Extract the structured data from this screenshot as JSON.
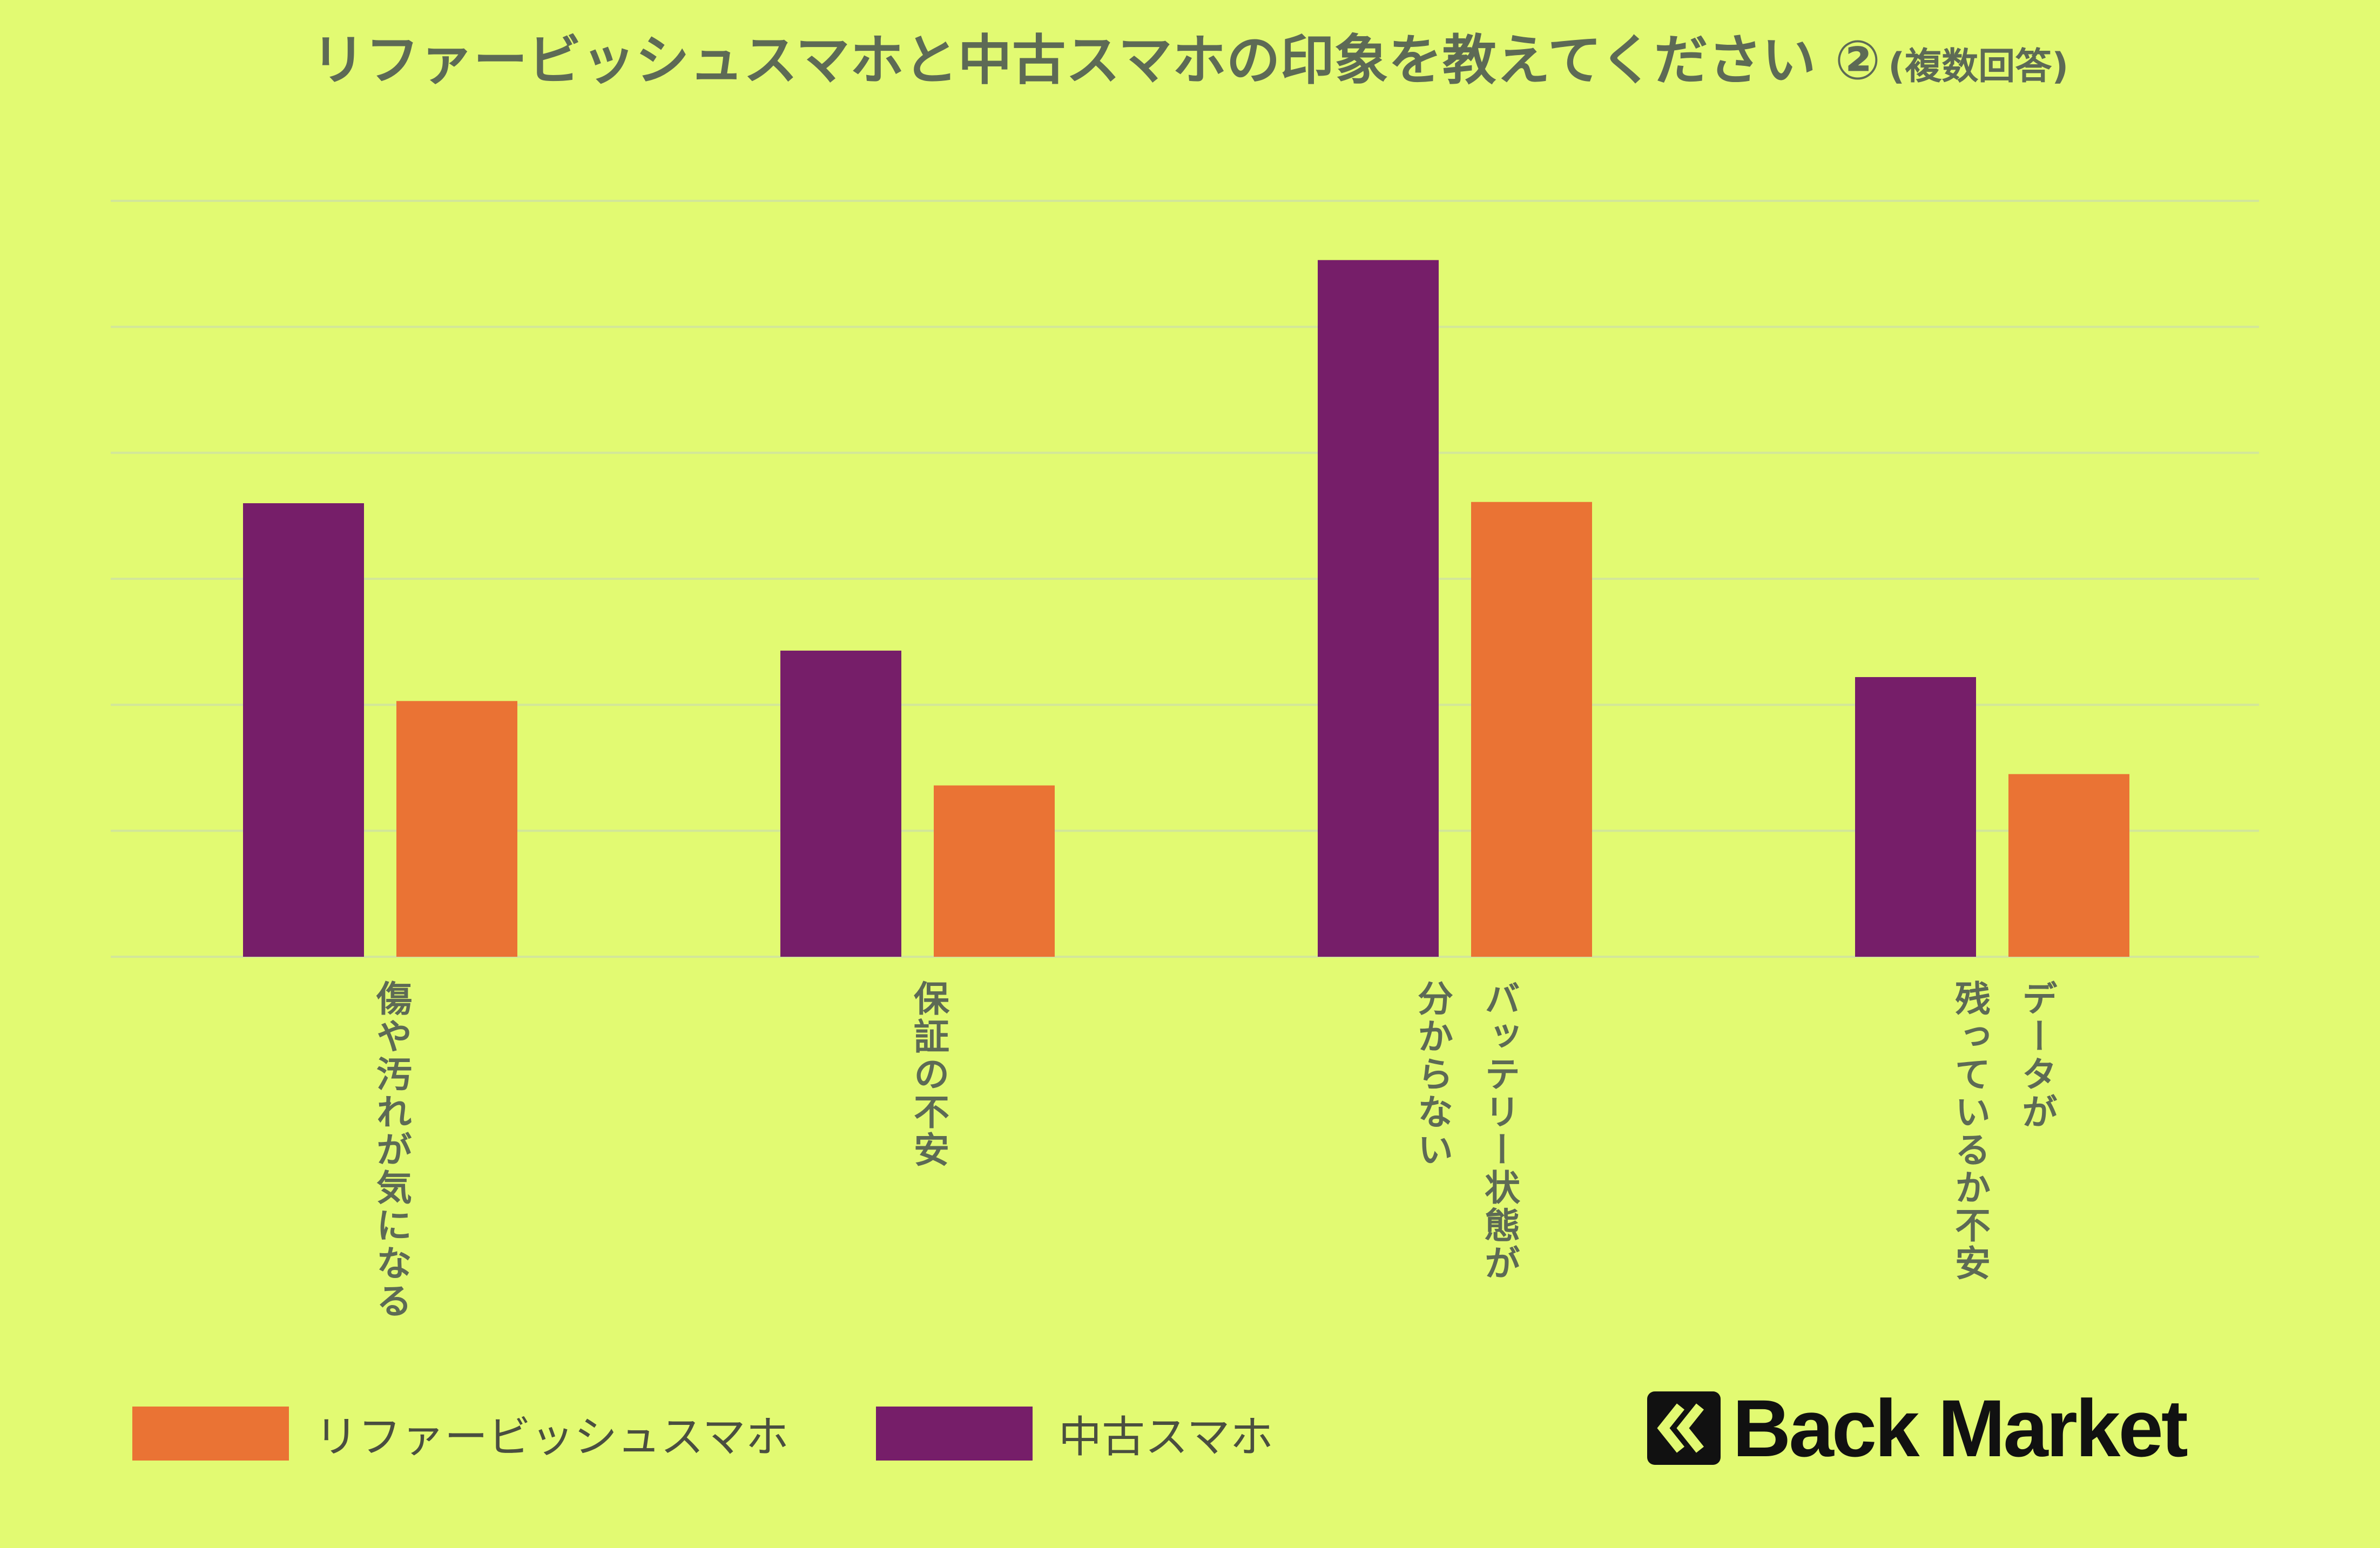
{
  "chart_data": {
    "type": "bar",
    "title": "リファービッシュスマホと中古スマホの印象を教えてください ②",
    "subtitle": "(複数回答)",
    "categories": [
      "傷や汚れが気になる",
      "保証の不安",
      "バッテリー状態が\n分からない",
      "データが\n残っているか不安"
    ],
    "series": [
      {
        "name": "中古スマホ",
        "color": "#761e69",
        "values": [
          36,
          24.3,
          55.3,
          22.2
        ]
      },
      {
        "name": "リファービッシュスマホ",
        "color": "#ea7334",
        "values": [
          20.3,
          13.6,
          36.1,
          14.5
        ]
      }
    ],
    "ylim": [
      0,
      60
    ],
    "yticks": [
      0,
      10,
      20,
      30,
      40,
      50,
      60
    ],
    "grid": true,
    "legend": {
      "position": "bottom-left",
      "order": [
        "リファービッシュスマホ",
        "中古スマホ"
      ]
    }
  },
  "brand": {
    "name": "Back Market"
  }
}
